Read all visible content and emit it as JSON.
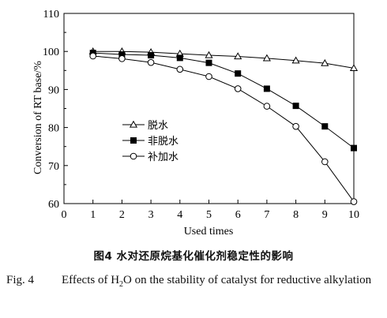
{
  "chart_data": {
    "type": "line",
    "x": [
      1,
      2,
      3,
      4,
      5,
      6,
      7,
      8,
      9,
      10
    ],
    "xlabel": "Used times",
    "ylabel": "Conversion of RT base/%",
    "xlim": [
      0,
      10
    ],
    "ylim": [
      60,
      110
    ],
    "xticks": [
      "0",
      "1",
      "2",
      "3",
      "4",
      "5",
      "6",
      "7",
      "8",
      "9",
      "10"
    ],
    "yticks": [
      "60",
      "70",
      "80",
      "90",
      "100",
      "110"
    ],
    "legend_position": "middle-left",
    "series": [
      {
        "name": "脱水",
        "marker": "triangle-open",
        "values": [
          100,
          100,
          99.8,
          99.4,
          99.0,
          98.7,
          98.2,
          97.6,
          96.9,
          95.6
        ]
      },
      {
        "name": "非脱水",
        "marker": "square-filled",
        "values": [
          99.6,
          99.2,
          99.0,
          98.3,
          97.0,
          94.2,
          90.2,
          85.7,
          80.3,
          74.6
        ]
      },
      {
        "name": "补加水",
        "marker": "circle-open",
        "values": [
          98.8,
          98.1,
          97.1,
          95.3,
          93.4,
          90.2,
          85.6,
          80.3,
          71.0,
          60.5
        ]
      }
    ]
  },
  "caption": {
    "cn": "图4   水对还原烷基化催化剂稳定性的影响",
    "en_label": "Fig. 4",
    "en_text_pre": "Effects of H",
    "en_sub": "2",
    "en_text_post": "O on the stability of catalyst for reductive alkylation"
  }
}
